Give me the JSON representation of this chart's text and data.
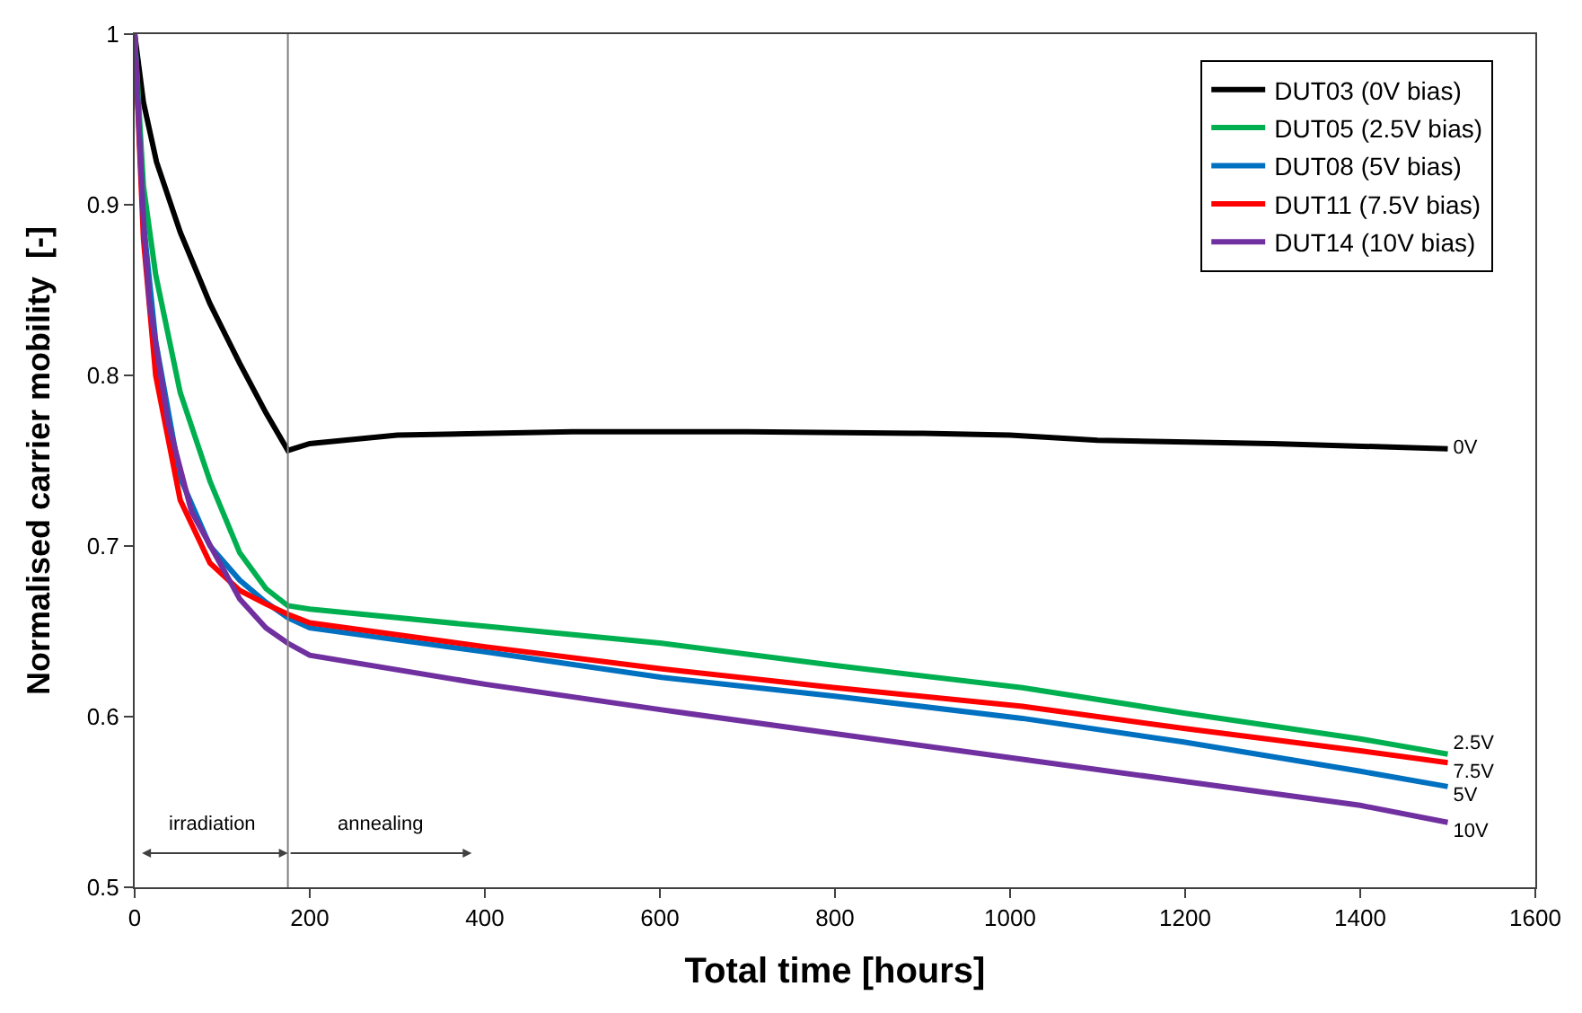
{
  "chart_data": {
    "type": "line",
    "xlabel": "Total time [hours]",
    "ylabel": "Normalised carrier mobility  [-]",
    "xlim": [
      0,
      1600
    ],
    "xticks": [
      0,
      200,
      400,
      600,
      800,
      1000,
      1200,
      1400,
      1600
    ],
    "ylim": [
      0.5,
      1
    ],
    "yticks": [
      0.5,
      0.6,
      0.7,
      0.8,
      0.9,
      1
    ],
    "legend": "top right",
    "marker": "none",
    "line_style": "solid",
    "series": [
      {
        "name": "DUT03 (0V bias)",
        "color": "#000000",
        "x": [
          0,
          10,
          25,
          52,
          86,
          120,
          150,
          175,
          200,
          300,
          500,
          700,
          900,
          1000,
          1100,
          1300,
          1500
        ],
        "values": [
          1,
          0.96,
          0.925,
          0.884,
          0.842,
          0.807,
          0.778,
          0.756,
          0.76,
          0.765,
          0.767,
          0.767,
          0.766,
          0.765,
          0.762,
          0.76,
          0.757
        ]
      },
      {
        "name": "DUT05 (2.5V bias)",
        "color": "#00b050",
        "x": [
          0,
          10,
          24,
          52,
          86,
          120,
          150,
          175,
          200,
          400,
          602,
          800,
          1014,
          1200,
          1400,
          1500
        ],
        "values": [
          1,
          0.911,
          0.859,
          0.79,
          0.738,
          0.696,
          0.675,
          0.665,
          0.663,
          0.653,
          0.643,
          0.63,
          0.617,
          0.602,
          0.587,
          0.578
        ]
      },
      {
        "name": "DUT08 (5V bias)",
        "color": "#0070c0",
        "x": [
          0,
          10,
          24,
          52,
          86,
          120,
          150,
          175,
          200,
          400,
          602,
          800,
          1014,
          1200,
          1400,
          1500
        ],
        "values": [
          1,
          0.89,
          0.82,
          0.74,
          0.7,
          0.68,
          0.667,
          0.658,
          0.652,
          0.638,
          0.623,
          0.612,
          0.599,
          0.585,
          0.568,
          0.559
        ]
      },
      {
        "name": "DUT11 (7.5V bias)",
        "color": "#ff0000",
        "x": [
          0,
          10,
          24,
          52,
          86,
          120,
          150,
          175,
          200,
          400,
          602,
          800,
          1014,
          1200,
          1400,
          1500
        ],
        "values": [
          1,
          0.88,
          0.8,
          0.727,
          0.69,
          0.674,
          0.666,
          0.66,
          0.655,
          0.641,
          0.628,
          0.617,
          0.606,
          0.593,
          0.58,
          0.573
        ]
      },
      {
        "name": "DUT14 (10V bias)",
        "color": "#7030a0",
        "x": [
          0,
          10,
          17,
          38,
          65,
          120,
          150,
          175,
          200,
          400,
          602,
          800,
          1014,
          1200,
          1400,
          1500
        ],
        "values": [
          1,
          0.89,
          0.842,
          0.773,
          0.72,
          0.669,
          0.652,
          0.643,
          0.636,
          0.619,
          0.604,
          0.59,
          0.575,
          0.562,
          0.548,
          0.538
        ]
      }
    ],
    "ref_lines": [
      {
        "axis": "x",
        "value": 175,
        "color": "#808080"
      }
    ],
    "annotations": [
      "0V",
      "2.5V",
      "7.5V",
      "5V",
      "10V",
      "irradiation",
      "annealing"
    ]
  }
}
